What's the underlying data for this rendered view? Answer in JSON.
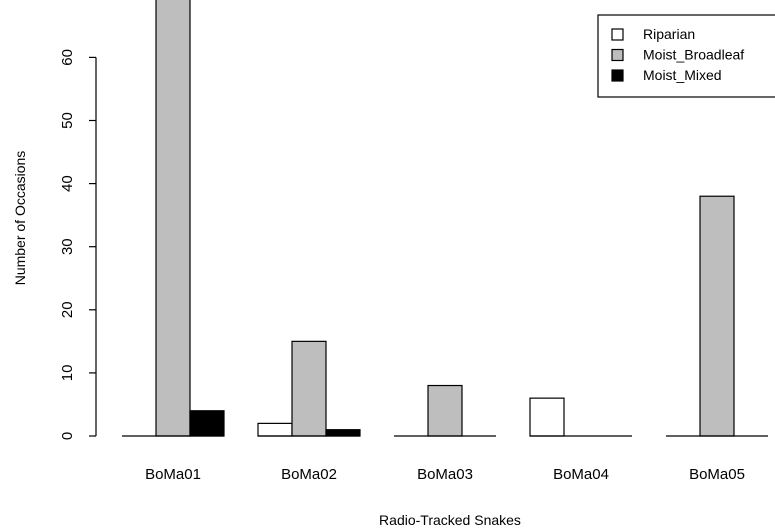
{
  "chart_data": {
    "type": "bar",
    "layout": "grouped",
    "title": "",
    "xlabel": "Radio-Tracked Snakes",
    "ylabel": "Number of Occasions",
    "categories": [
      "BoMa01",
      "BoMa02",
      "BoMa03",
      "BoMa04",
      "BoMa05"
    ],
    "series": [
      {
        "name": "Riparian",
        "color": "#ffffff",
        "values": [
          0,
          2,
          0,
          6,
          0
        ]
      },
      {
        "name": "Moist_Broadleaf",
        "color": "#bebebe",
        "values": [
          70,
          15,
          8,
          0,
          38
        ]
      },
      {
        "name": "Moist_Mixed",
        "color": "#000000",
        "values": [
          4,
          1,
          0,
          0,
          0
        ]
      }
    ],
    "yticks": [
      0,
      10,
      20,
      30,
      40,
      50,
      60
    ],
    "ylim": [
      0,
      70
    ],
    "grid": false,
    "legend_position": "top-right"
  }
}
